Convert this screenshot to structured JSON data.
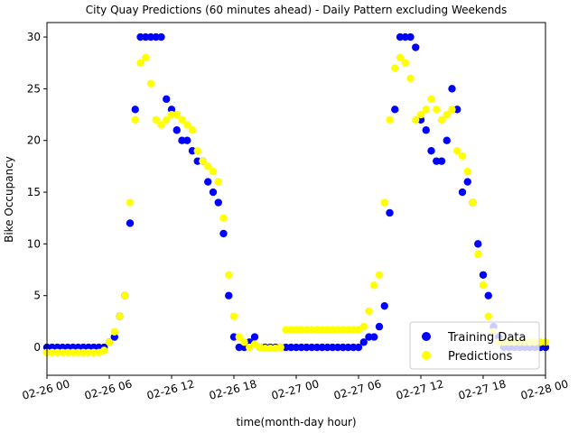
{
  "chart_data": {
    "type": "scatter",
    "title": "City Quay Predictions (60 minutes ahead) - Daily Pattern excluding Weekends",
    "x_label": "time(month-day hour)",
    "y_label": "Bike Occupancy",
    "x": [
      0,
      0.5,
      1,
      1.5,
      2,
      2.5,
      3,
      3.5,
      4,
      4.5,
      5,
      5.5,
      6,
      6.5,
      7,
      7.5,
      8,
      8.5,
      9,
      9.5,
      10,
      10.5,
      11,
      11.5,
      12,
      12.5,
      13,
      13.5,
      14,
      14.5,
      15,
      15.5,
      16,
      16.5,
      17,
      17.5,
      18,
      18.5,
      19,
      19.5,
      20,
      20.5,
      21,
      21.5,
      22,
      22.5,
      23,
      23.5,
      24,
      24.5,
      25,
      25.5,
      26,
      26.5,
      27,
      27.5,
      28,
      28.5,
      29,
      29.5,
      30,
      30.5,
      31,
      31.5,
      32,
      32.5,
      33,
      33.5,
      34,
      34.5,
      35,
      35.5,
      36,
      36.5,
      37,
      37.5,
      38,
      38.5,
      39,
      39.5,
      40,
      40.5,
      41,
      41.5,
      42,
      42.5,
      43,
      43.5,
      44,
      44.5,
      45,
      45.5,
      46,
      46.5,
      47,
      47.5,
      48
    ],
    "series": [
      {
        "name": "Training Data",
        "color": "#0000ff",
        "values": [
          0,
          0,
          0,
          0,
          0,
          0,
          0,
          0,
          0,
          0,
          0,
          0,
          0.5,
          1,
          3,
          5,
          12,
          23,
          30,
          30,
          30,
          30,
          30,
          24,
          23,
          21,
          20,
          20,
          19,
          18,
          18,
          16,
          15,
          14,
          11,
          5,
          1,
          0,
          0,
          0.5,
          1,
          0,
          0,
          0,
          0,
          0,
          0,
          0,
          0,
          0,
          0,
          0,
          0,
          0,
          0,
          0,
          0,
          0,
          0,
          0,
          0,
          0.5,
          1,
          1,
          2,
          4,
          13,
          23,
          30,
          30,
          30,
          29,
          22,
          21,
          19,
          18,
          18,
          20,
          25,
          23,
          15,
          16,
          14,
          10,
          7,
          5,
          2,
          1,
          0,
          0,
          0,
          0,
          0,
          0,
          0,
          0,
          0
        ]
      },
      {
        "name": "Predictions",
        "color": "#ffff00",
        "values": [
          -0.5,
          -0.5,
          -0.5,
          -0.5,
          -0.5,
          -0.5,
          -0.5,
          -0.5,
          -0.5,
          -0.5,
          -0.5,
          -0.3,
          0.5,
          1.5,
          3,
          5,
          14,
          22,
          27.5,
          28,
          25.5,
          22,
          21.5,
          22,
          22.5,
          22.5,
          22,
          21.5,
          21,
          19,
          18,
          17.5,
          17,
          16,
          12.5,
          7,
          3,
          1,
          0.5,
          0,
          0.3,
          0,
          -0.1,
          -0.1,
          -0.1,
          0,
          1.7,
          1.7,
          1.7,
          1.7,
          1.7,
          1.7,
          1.7,
          1.7,
          1.7,
          1.7,
          1.7,
          1.7,
          1.7,
          1.7,
          1.7,
          2,
          3.5,
          6,
          7,
          14,
          22,
          27,
          28,
          27.5,
          26,
          22,
          22.5,
          23,
          24,
          23,
          22,
          22.5,
          23,
          19,
          18.5,
          17,
          14,
          9,
          6,
          3,
          1.5,
          0.5,
          0.5,
          0.5,
          0.5,
          0.5,
          0.5,
          0.5,
          0.5,
          0.5,
          0.5
        ]
      }
    ],
    "xlim": [
      0,
      48
    ],
    "xticks": [
      {
        "value": 0,
        "label": "02-26 00"
      },
      {
        "value": 6,
        "label": "02-26 06"
      },
      {
        "value": 12,
        "label": "02-26 12"
      },
      {
        "value": 18,
        "label": "02-26 18"
      },
      {
        "value": 24,
        "label": "02-27 00"
      },
      {
        "value": 30,
        "label": "02-27 06"
      },
      {
        "value": 36,
        "label": "02-27 12"
      },
      {
        "value": 42,
        "label": "02-27 18"
      },
      {
        "value": 48,
        "label": "02-28 00"
      }
    ],
    "ylim": [
      -2.7,
      31.4
    ],
    "yticks": [
      0,
      5,
      10,
      15,
      20,
      25,
      30
    ],
    "legend": "lower right"
  }
}
